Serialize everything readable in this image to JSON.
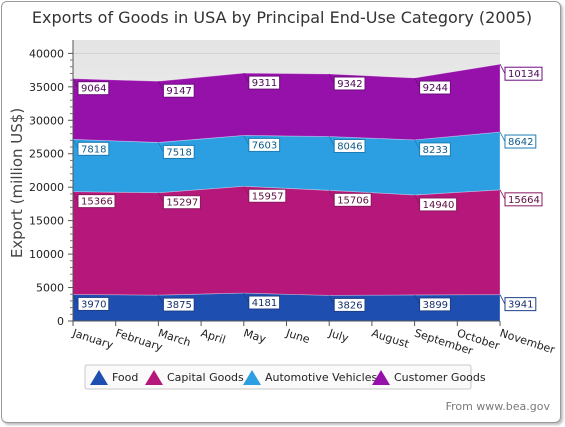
{
  "chart_data": {
    "type": "area",
    "stacked": true,
    "title": "Exports of Goods in USA by Principal  End-Use Category (2005)",
    "ylabel": "Export (million US$)",
    "xlabel": "",
    "ylim": [
      0,
      42000
    ],
    "yticks": [
      0,
      5000,
      10000,
      15000,
      20000,
      25000,
      30000,
      35000,
      40000
    ],
    "grid": true,
    "legend_position": "bottom",
    "categories": [
      "January",
      "February",
      "March",
      "April",
      "May",
      "June",
      "July",
      "August",
      "September",
      "October",
      "November"
    ],
    "labeled_points": [
      0,
      2,
      4,
      6,
      8,
      10
    ],
    "series": [
      {
        "name": "Food",
        "color": "#1e4fb0",
        "label_border": "#1c3f8a",
        "label_text": "#15306d",
        "values": [
          3970,
          3922,
          3875,
          4028,
          4181,
          4003,
          3826,
          3862,
          3899,
          3920,
          3941
        ]
      },
      {
        "name": "Capital Goods",
        "color": "#b5177a",
        "label_border": "#8a1860",
        "label_text": "#5e0f40",
        "values": [
          15366,
          15331,
          15297,
          15627,
          15957,
          15831,
          15706,
          15323,
          14940,
          15302,
          15664
        ]
      },
      {
        "name": "Automotive Vehicles",
        "color": "#2b9fe2",
        "label_border": "#1b7cb5",
        "label_text": "#0f5c8a",
        "values": [
          7818,
          7668,
          7518,
          7560,
          7603,
          7824,
          8046,
          8139,
          8233,
          8437,
          8642
        ]
      },
      {
        "name": "Customer Goods",
        "color": "#9610aa",
        "label_border": "#6e0d7e",
        "label_text": "#4a0855",
        "values": [
          9064,
          9105,
          9147,
          9229,
          9311,
          9326,
          9342,
          9293,
          9244,
          9689,
          10134
        ]
      }
    ],
    "source": "From www.bea.gov"
  }
}
